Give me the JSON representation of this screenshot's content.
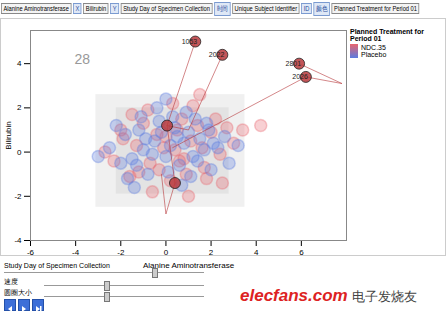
{
  "toolbar": [
    {
      "text": "Alanine Aminotransferase",
      "kind": "field"
    },
    {
      "text": "X",
      "kind": "button"
    },
    {
      "text": "Bilirubin",
      "kind": "field"
    },
    {
      "text": "Y",
      "kind": "button"
    },
    {
      "text": "Study Day of Specimen Collection",
      "kind": "field"
    },
    {
      "text": "时间",
      "kind": "button"
    },
    {
      "text": "Unique Subject Identifier",
      "kind": "field"
    },
    {
      "text": "ID",
      "kind": "button"
    },
    {
      "text": "颜色",
      "kind": "button"
    },
    {
      "text": "Planned Treatment for Period 01",
      "kind": "field"
    }
  ],
  "chart_data": {
    "type": "scatter",
    "x_label": "Alanine Aminotransferase",
    "y_label": "Bilirubin",
    "xlim": [
      -6,
      8
    ],
    "ylim": [
      -4,
      5.5
    ],
    "xticks": [
      -6,
      -4,
      -2,
      0,
      2,
      4,
      6
    ],
    "yticks": [
      -4,
      -2,
      0,
      2,
      4
    ],
    "grid": false,
    "annotations": [
      "28"
    ],
    "legend": "right",
    "legend_title": "Planned Treatment for Period 01",
    "series": [
      {
        "name": "NDC.35",
        "color": "#e8646e",
        "x": [
          -2.3,
          -1.9,
          -1.6,
          -1.3,
          -1.0,
          -0.7,
          -0.4,
          -0.1,
          0.2,
          0.5,
          0.8,
          1.1,
          1.4,
          1.7,
          2.0,
          2.4,
          2.7,
          3.0,
          -2.7,
          -1.5,
          -0.6,
          0.3,
          0.9,
          1.6,
          2.2,
          -0.8,
          0.0,
          0.6,
          1.2,
          1.8,
          -1.2,
          -0.3,
          0.4,
          1.0,
          2.5,
          3.4,
          -2.0,
          0.7,
          1.5,
          4.2
        ],
        "y": [
          -0.4,
          0.6,
          -1.1,
          0.3,
          1.3,
          -0.5,
          0.8,
          0.2,
          -1.3,
          1.0,
          -0.3,
          0.5,
          1.2,
          -0.7,
          0.9,
          -0.1,
          1.1,
          0.4,
          0.0,
          1.7,
          -1.8,
          2.2,
          -1.0,
          0.2,
          1.5,
          1.9,
          0.7,
          -0.4,
          2.1,
          -1.2,
          -0.9,
          -0.8,
          0.1,
          -2.0,
          -1.4,
          1.0,
          1.0,
          1.5,
          2.6,
          1.2
        ]
      },
      {
        "name": "Placebo",
        "color": "#5b7be0",
        "x": [
          -2.5,
          -2,
          -1.8,
          -1.5,
          -1.2,
          -1,
          -0.8,
          -0.5,
          -0.3,
          0,
          0.2,
          0.4,
          0.6,
          0.8,
          1,
          1.2,
          1.5,
          1.8,
          2,
          2.3,
          2.6,
          -1.7,
          -1.1,
          -0.6,
          0.1,
          0.5,
          0.9,
          1.4,
          2.1,
          -2.2,
          -1.4,
          -0.4,
          0.3,
          1.1,
          1.7,
          2.8,
          -3,
          -0.9,
          0.7,
          1.9,
          -0.2,
          0.0,
          -1.3,
          1.3,
          3.2
        ],
        "y": [
          0.2,
          -0.5,
          0.8,
          -0.3,
          1.0,
          0.1,
          -1.0,
          0.5,
          1.4,
          -0.2,
          0.3,
          1.1,
          -0.6,
          0.4,
          0.9,
          -0.2,
          0.6,
          1.3,
          -0.8,
          0.2,
          0.7,
          -1.2,
          1.6,
          -0.1,
          -0.9,
          0.7,
          1.8,
          -0.4,
          0.4,
          1.2,
          -1.6,
          2.0,
          1.6,
          -1.1,
          0.1,
          -0.5,
          -0.2,
          0.6,
          -1.5,
          1.0,
          0.9,
          2.4,
          -0.6,
          1.5,
          0.3
        ]
      }
    ],
    "highlighted": {
      "color": "#b8383c",
      "x": [
        1.3,
        2.5,
        5.9,
        6.2,
        0.05,
        0.4
      ],
      "y": [
        5.0,
        4.4,
        4.0,
        3.4,
        1.2,
        -1.4
      ],
      "labels": [
        "1053",
        "2022",
        "2801",
        "2026",
        null,
        null
      ]
    },
    "trails": [
      {
        "x": [
          1.3,
          0.05,
          0.4
        ],
        "y": [
          5.0,
          1.2,
          -1.4
        ]
      },
      {
        "x": [
          2.5,
          1.0,
          0.05
        ],
        "y": [
          4.4,
          1.0,
          1.2
        ]
      },
      {
        "x": [
          5.9,
          7.8,
          6.2,
          0.3
        ],
        "y": [
          4.0,
          3.1,
          3.4,
          0.2
        ]
      },
      {
        "x": [
          0.4,
          0.0,
          -0.2
        ],
        "y": [
          -1.4,
          -2.8,
          -1.0
        ]
      }
    ],
    "regions": [
      {
        "x1": -3.1,
        "x2": 3.5,
        "y1": -2.5,
        "y2": 2.6
      },
      {
        "x1": -2.2,
        "x2": 2.8,
        "y1": -1.9,
        "y2": 2.0
      }
    ]
  },
  "controls": {
    "sliders": [
      "Study Day of Specimen Collection",
      "速度",
      "圆圈大小"
    ]
  },
  "watermark": [
    "elecfans.com",
    "电子发烧友"
  ]
}
